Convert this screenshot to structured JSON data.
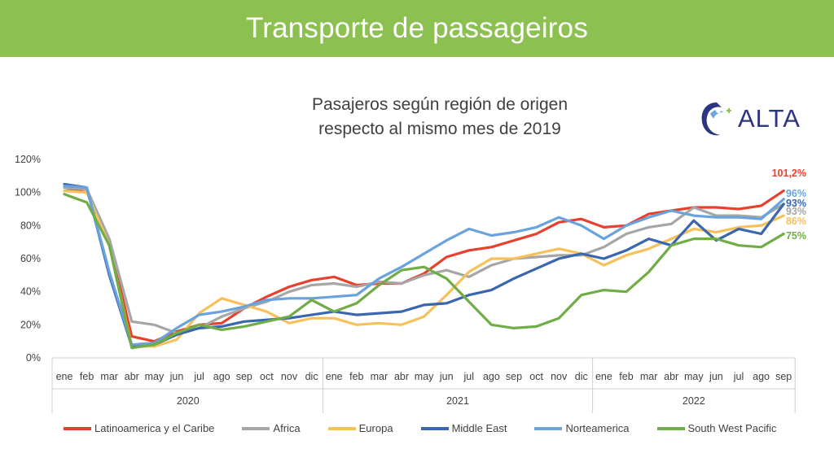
{
  "banner": {
    "title": "Transporte de passageiros"
  },
  "logo": {
    "text": "ALTA",
    "icon": "alta-bird-logo"
  },
  "chart_data": {
    "type": "line",
    "title_lines": [
      "Pasajeros según región de origen",
      "respecto al mismo mes de 2019"
    ],
    "ylim": [
      0,
      120
    ],
    "yticks": [
      "0%",
      "20%",
      "40%",
      "60%",
      "80%",
      "100%",
      "120%"
    ],
    "years": [
      "2020",
      "2021",
      "2022"
    ],
    "months": [
      "ene",
      "feb",
      "mar",
      "abr",
      "may",
      "jun",
      "jul",
      "ago",
      "sep",
      "oct",
      "nov",
      "dic",
      "ene",
      "feb",
      "mar",
      "abr",
      "may",
      "jun",
      "jul",
      "ago",
      "sep",
      "oct",
      "nov",
      "dic",
      "ene",
      "feb",
      "mar",
      "abr",
      "may",
      "jun",
      "jul",
      "ago",
      "sep"
    ],
    "grid": false,
    "legend_position": "bottom",
    "series": [
      {
        "name": "Latinoamerica y el Caribe",
        "color": "#e8402d",
        "end_label": "101,2%",
        "values": [
          101,
          102,
          70,
          13,
          10,
          16,
          20,
          21,
          30,
          37,
          43,
          47,
          49,
          44,
          45,
          45,
          51,
          61,
          65,
          67,
          71,
          75,
          82,
          84,
          79,
          80,
          87,
          89,
          91,
          91,
          90,
          92,
          101
        ]
      },
      {
        "name": "Africa",
        "color": "#a6a6a6",
        "end_label": "93%",
        "values": [
          103,
          102,
          72,
          22,
          20,
          15,
          18,
          25,
          30,
          34,
          40,
          44,
          45,
          43,
          46,
          45,
          50,
          53,
          49,
          56,
          60,
          61,
          62,
          62,
          67,
          75,
          79,
          81,
          91,
          86,
          86,
          85,
          93
        ]
      },
      {
        "name": "Europa",
        "color": "#f6c15b",
        "end_label": "86%",
        "values": [
          101,
          100,
          68,
          7,
          7,
          11,
          27,
          36,
          32,
          28,
          21,
          24,
          24,
          20,
          21,
          20,
          25,
          38,
          52,
          60,
          60,
          63,
          66,
          63,
          56,
          62,
          66,
          72,
          78,
          76,
          79,
          80,
          86
        ]
      },
      {
        "name": "Middle East",
        "color": "#3a66b0",
        "end_label": "93%",
        "values": [
          105,
          103,
          50,
          7,
          8,
          14,
          18,
          19,
          22,
          23,
          24,
          26,
          28,
          26,
          27,
          28,
          32,
          33,
          38,
          41,
          48,
          54,
          60,
          63,
          60,
          65,
          72,
          68,
          83,
          71,
          78,
          75,
          93
        ]
      },
      {
        "name": "Norteamerica",
        "color": "#68a3dd",
        "end_label": "96%",
        "values": [
          104,
          103,
          52,
          8,
          9,
          18,
          26,
          28,
          31,
          35,
          36,
          36,
          37,
          38,
          48,
          55,
          63,
          71,
          78,
          74,
          76,
          79,
          85,
          80,
          72,
          80,
          85,
          89,
          86,
          85,
          85,
          84,
          96
        ]
      },
      {
        "name": "South West Pacific",
        "color": "#70ad47",
        "end_label": "75%",
        "values": [
          99,
          94,
          68,
          6,
          8,
          15,
          20,
          17,
          19,
          22,
          25,
          35,
          28,
          33,
          44,
          53,
          55,
          48,
          34,
          20,
          18,
          19,
          24,
          38,
          41,
          40,
          52,
          68,
          72,
          72,
          68,
          67,
          75
        ]
      }
    ]
  }
}
